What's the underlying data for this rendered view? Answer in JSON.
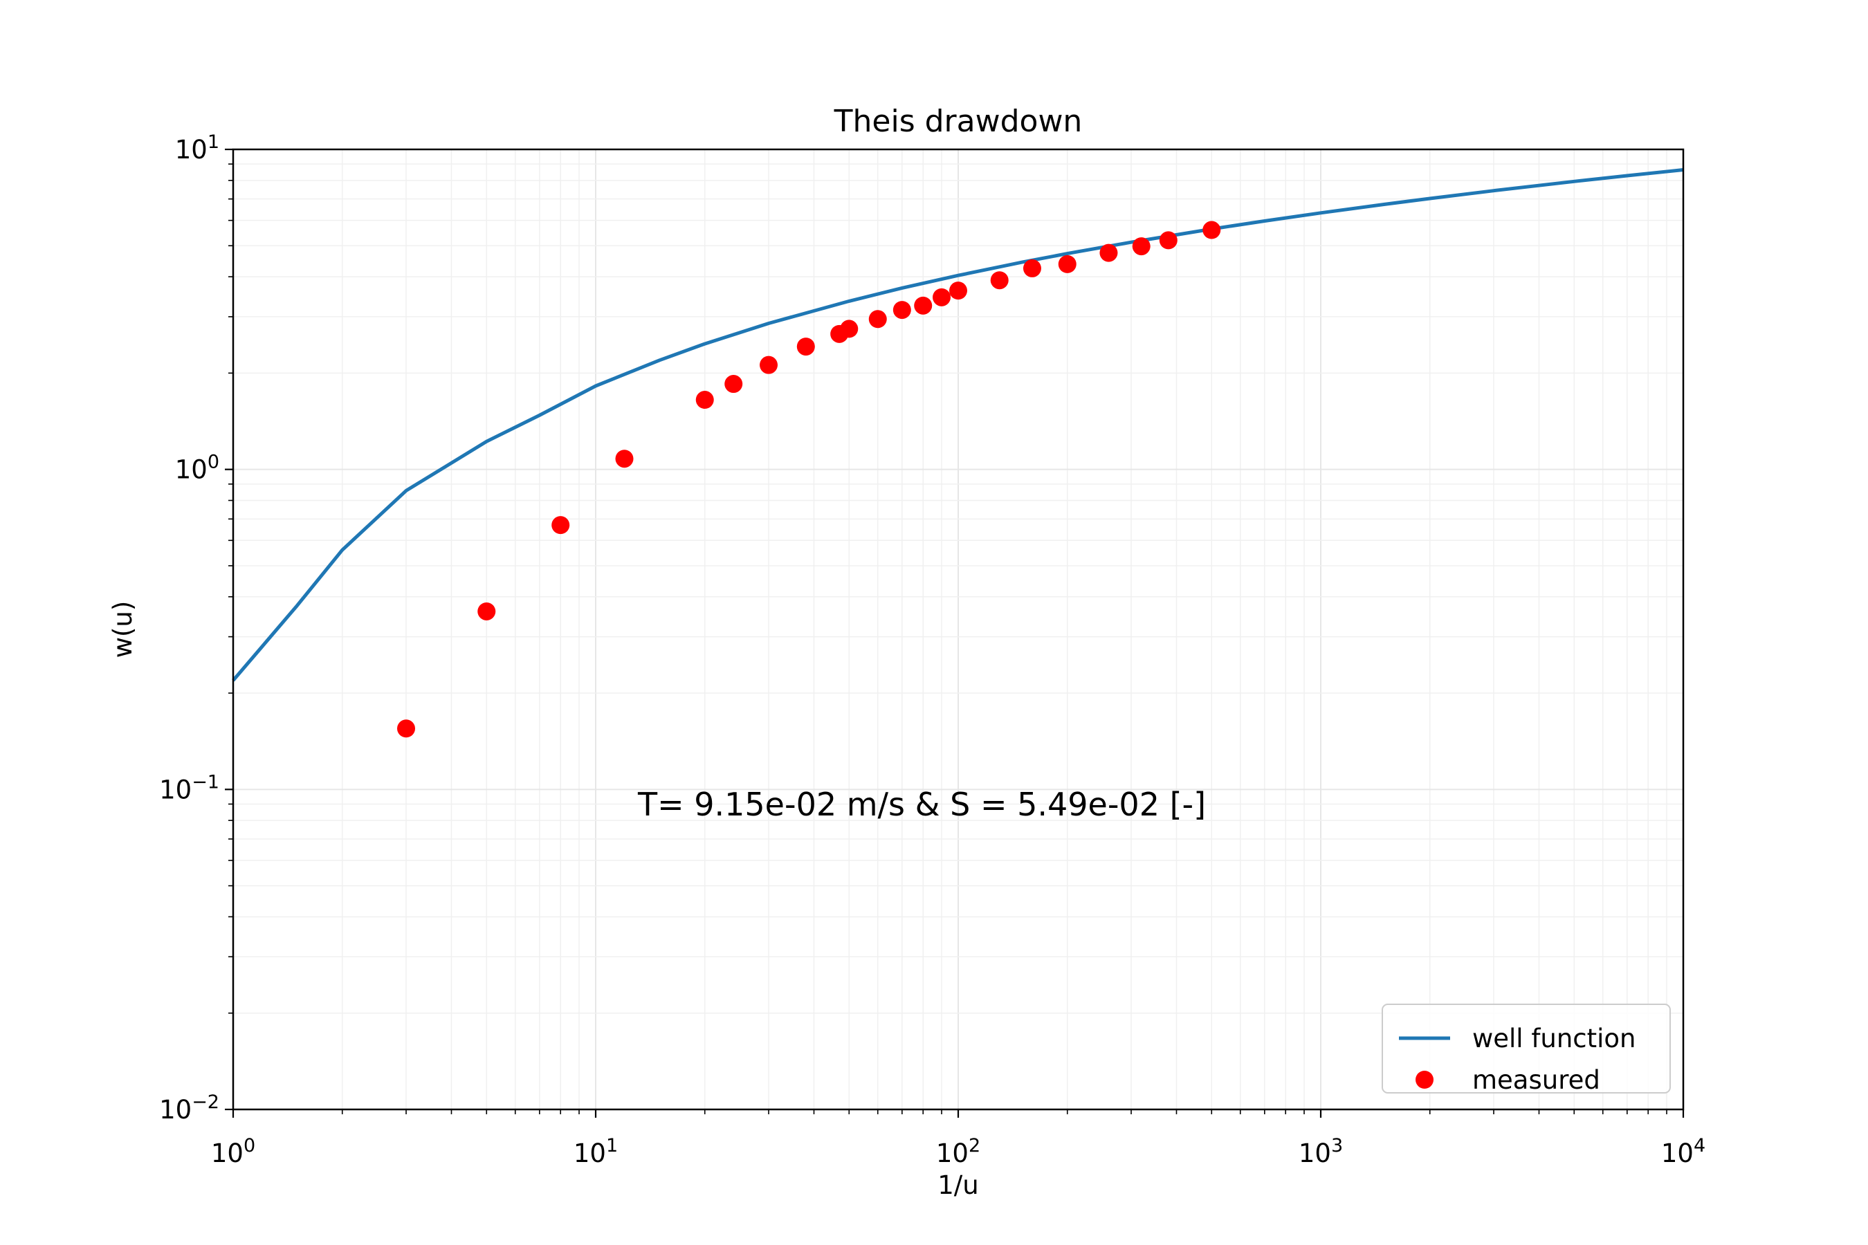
{
  "chart_data": {
    "type": "line",
    "title": "Theis drawdown",
    "xlabel": "1/u",
    "ylabel": "w(u)",
    "xscale": "log",
    "yscale": "log",
    "xlim": [
      1,
      10000
    ],
    "ylim": [
      0.01,
      10
    ],
    "grid": true,
    "x_ticks": [
      {
        "value": 1,
        "base": "10",
        "exp": "0"
      },
      {
        "value": 10,
        "base": "10",
        "exp": "1"
      },
      {
        "value": 100,
        "base": "10",
        "exp": "2"
      },
      {
        "value": 1000,
        "base": "10",
        "exp": "3"
      },
      {
        "value": 10000,
        "base": "10",
        "exp": "4"
      }
    ],
    "y_ticks": [
      {
        "value": 0.01,
        "base": "10",
        "exp": "−2"
      },
      {
        "value": 0.1,
        "base": "10",
        "exp": "−1"
      },
      {
        "value": 1,
        "base": "10",
        "exp": "0"
      },
      {
        "value": 10,
        "base": "10",
        "exp": "1"
      }
    ],
    "annotation": "T= 9.15e-02 m/s  &  S = 5.49e-02 [-]",
    "legend_position": "lower-right",
    "series": [
      {
        "name": "well function",
        "kind": "line",
        "color": "#1f77b4",
        "x": [
          1,
          1.5,
          2,
          3,
          5,
          7,
          10,
          15,
          20,
          30,
          50,
          70,
          100,
          150,
          200,
          300,
          500,
          700,
          1000,
          1500,
          2000,
          3000,
          5000,
          7000,
          10000
        ],
        "y": [
          0.219,
          0.375,
          0.56,
          0.858,
          1.223,
          1.476,
          1.823,
          2.194,
          2.468,
          2.86,
          3.355,
          3.688,
          4.038,
          4.441,
          4.726,
          5.128,
          5.639,
          5.975,
          6.332,
          6.736,
          7.024,
          7.429,
          7.94,
          8.276,
          8.633
        ]
      },
      {
        "name": "measured",
        "kind": "scatter",
        "color": "#ff0000",
        "x": [
          3,
          5,
          8,
          12,
          20,
          24,
          30,
          38,
          47,
          50,
          60,
          70,
          80,
          90,
          100,
          130,
          160,
          200,
          260,
          320,
          380,
          500
        ],
        "y": [
          0.155,
          0.36,
          0.67,
          1.08,
          1.65,
          1.85,
          2.12,
          2.42,
          2.65,
          2.75,
          2.95,
          3.15,
          3.25,
          3.45,
          3.62,
          3.9,
          4.25,
          4.38,
          4.75,
          4.98,
          5.2,
          5.6
        ]
      }
    ]
  }
}
